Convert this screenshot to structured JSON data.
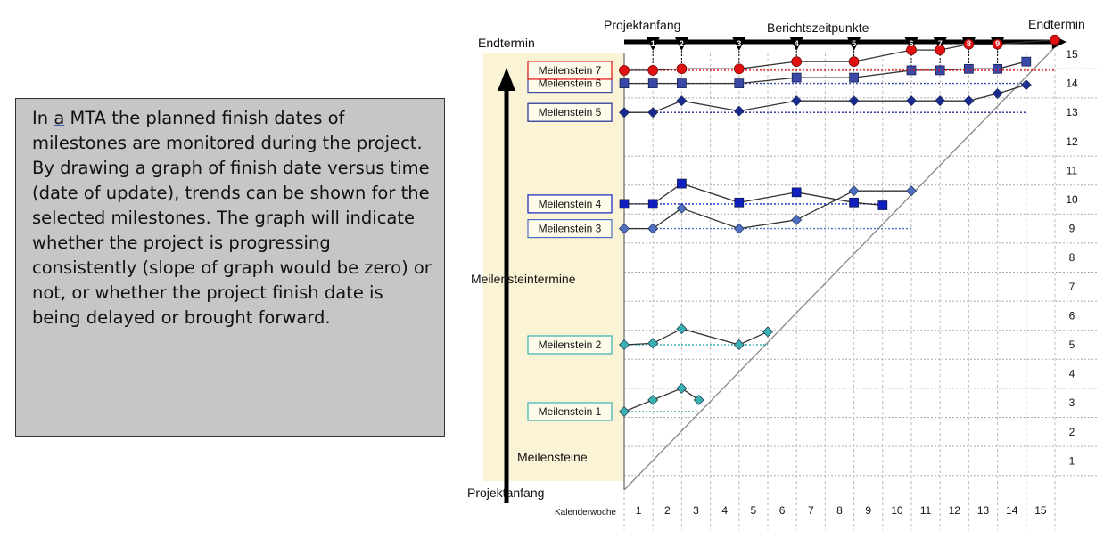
{
  "description": {
    "article": "a",
    "text_before": "In ",
    "text_after": " MTA the planned finish dates of milestones are monitored during the project. By drawing a graph of finish date versus time (date of update), trends can be shown for the selected milestones. The graph will indicate whether the project is progressing consistently (slope of graph would be zero) or not, or whether the project finish date is being delayed or brought forward."
  },
  "chart_data": {
    "type": "line",
    "title_left": "Projektanfang",
    "title_mid": "Berichtszeitpunkte",
    "title_right": "Endtermin",
    "yaxis_top_label": "Endtermin",
    "yaxis_mid_label": "Meilensteintermine",
    "yaxis_bottom_label": "Meilensteine",
    "origin_label": "Projektanfang",
    "xlabel": "Kalenderwoche",
    "x_ticks": [
      1,
      2,
      3,
      4,
      5,
      6,
      7,
      8,
      9,
      10,
      11,
      12,
      13,
      14,
      15
    ],
    "y_ticks": [
      1,
      2,
      3,
      4,
      5,
      6,
      7,
      8,
      9,
      10,
      11,
      12,
      13,
      14,
      15
    ],
    "report_points": [
      {
        "label": "1",
        "x": 1
      },
      {
        "label": "2",
        "x": 2
      },
      {
        "label": "3",
        "x": 4
      },
      {
        "label": "4",
        "x": 6
      },
      {
        "label": "5",
        "x": 8
      },
      {
        "label": "6",
        "x": 10
      },
      {
        "label": "7",
        "x": 11
      },
      {
        "label": "8",
        "x": 12
      },
      {
        "label": "9",
        "x": 13
      }
    ],
    "colors": {
      "background_panel": "#fbf3d6",
      "m1": "#3ab0b0",
      "m2": "#3ab0b0",
      "m3": "#4f6fc0",
      "m4": "#1020c0",
      "m5": "#1a2a90",
      "m6": "#3a48a8",
      "m7": "#e01010",
      "diagonal": "#888888"
    },
    "series": [
      {
        "name": "Meilenstein 1",
        "marker": "diamond",
        "color": "#3ab0b0",
        "points": [
          [
            0,
            2.7
          ],
          [
            1,
            3.1
          ],
          [
            2,
            3.5
          ],
          [
            2.6,
            3.1
          ]
        ]
      },
      {
        "name": "Meilenstein 2",
        "marker": "diamond",
        "color": "#3ab0b0",
        "points": [
          [
            0,
            5
          ],
          [
            1,
            5.05
          ],
          [
            2,
            5.55
          ],
          [
            4,
            5
          ],
          [
            5,
            5.45
          ]
        ]
      },
      {
        "name": "Meilenstein 3",
        "marker": "diamond",
        "color": "#4f6fc0",
        "points": [
          [
            0,
            9
          ],
          [
            1,
            9
          ],
          [
            2,
            9.7
          ],
          [
            4,
            9
          ],
          [
            6,
            9.3
          ],
          [
            8,
            10.3
          ],
          [
            10,
            10.3
          ]
        ]
      },
      {
        "name": "Meilenstein 4",
        "marker": "square",
        "color": "#1020c0",
        "points": [
          [
            0,
            9.85
          ],
          [
            1,
            9.85
          ],
          [
            2,
            10.55
          ],
          [
            4,
            9.9
          ],
          [
            6,
            10.25
          ],
          [
            8,
            9.9
          ],
          [
            9,
            9.8
          ]
        ]
      },
      {
        "name": "Meilenstein 5",
        "marker": "diamond",
        "color": "#1a2a90",
        "points": [
          [
            0,
            13
          ],
          [
            1,
            13
          ],
          [
            2,
            13.4
          ],
          [
            4,
            13.05
          ],
          [
            6,
            13.4
          ],
          [
            8,
            13.4
          ],
          [
            10,
            13.4
          ],
          [
            11,
            13.4
          ],
          [
            12,
            13.4
          ],
          [
            13,
            13.65
          ],
          [
            14,
            13.95
          ]
        ]
      },
      {
        "name": "Meilenstein 6",
        "marker": "square",
        "color": "#3a48a8",
        "points": [
          [
            0,
            14
          ],
          [
            1,
            14
          ],
          [
            2,
            14
          ],
          [
            4,
            14
          ],
          [
            6,
            14.2
          ],
          [
            8,
            14.2
          ],
          [
            10,
            14.45
          ],
          [
            11,
            14.45
          ],
          [
            12,
            14.5
          ],
          [
            13,
            14.5
          ],
          [
            14,
            14.75
          ]
        ]
      },
      {
        "name": "Meilenstein 7",
        "marker": "circle",
        "color": "#e01010",
        "points": [
          [
            0,
            14.45
          ],
          [
            1,
            14.45
          ],
          [
            2,
            14.5
          ],
          [
            4,
            14.5
          ],
          [
            6,
            14.75
          ],
          [
            8,
            14.75
          ],
          [
            10,
            15.15
          ],
          [
            11,
            15.15
          ],
          [
            12,
            15.35
          ],
          [
            13,
            15.35
          ],
          [
            15,
            15.5
          ]
        ]
      }
    ]
  }
}
